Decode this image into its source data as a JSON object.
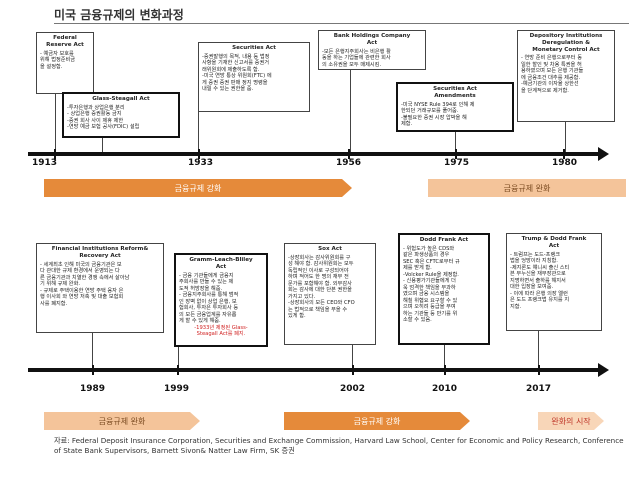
{
  "title": "미국 금융규제의 변화과정",
  "top": {
    "boxes": [
      {
        "id": "federal",
        "title": "Federal\nReserve Act",
        "body": "- 예금자 보호를\n위해 법정준비금\n을 설정함."
      },
      {
        "id": "glass",
        "title": "Glass-Steagall Act",
        "body": "-투자은행과 상업은행 분리\n- 상업은행 증권활동 금지\n-증권 회사 사이 제휴 제한\n-연방 예금 보험 공사(FDIC) 설립"
      },
      {
        "id": "securities",
        "title": "Securities Act",
        "body": "-증권발행의 목적, 내용 등 법정\n사항을 기재한 신고서를 증권거\n래위원회에 제출하도록 함.\n-미국 연방 통상 위원회(FTC) 에\n게 증권 증권 판매 정지 명령을\n내릴 수 있는 권한을 줌."
      },
      {
        "id": "bhca",
        "title": "Bank Holdings Company\nAct",
        "body": "-모든 은행지주회사는 비은행 활\n동을 하는 기업들에 관련한 회사\n의 소유권을 모두 매제시킴."
      },
      {
        "id": "secamend",
        "title": "Securities Act\nAmendments",
        "body": "-미국 NYSE Rule 394로 인해 제\n한되던 거래규모를 풀어줌.\n-불필요한 증권 시장 압박을 해\n제함."
      },
      {
        "id": "didmca",
        "title": "Depository Institutions\nDeregulation &\nMonetary Control Act",
        "body": "- 연방 준비 은행으로부터 동\n일한 할인 및 차용 특권을 허\n용하였으며 모든 은행 기관들\n에 금융조건 대추를 제공함.\n-예금기관의 이자율 상한선\n을 단계적으로 제거함."
      }
    ],
    "years": [
      "1913",
      "1933",
      "1956",
      "1975",
      "1980"
    ],
    "bands": [
      {
        "label": "금융규제 강화"
      },
      {
        "label": "금융규제 완화"
      }
    ]
  },
  "bottom": {
    "boxes": [
      {
        "id": "firrea",
        "title": "Financial Institutions Reform&\nRecovery Act",
        "body": "- 세계최초 인해 미국의 금융기관은 보\n다 관대한 규제 환경에서 운영되는 다\n른 금융기관과 치열한 경쟁 속에서 살아남\n기 위해 규제 완화.\n- 규제로 주택이용한 연방 주택 융자 은\n행 이사회 와 연방 저축 및 대출 보험회\n사를 폐지함."
      },
      {
        "id": "glba",
        "title": "Gramm-Leach-Bliley\nAct",
        "body": "- 금융 기관들에게 금융지\n주회사를 만들 수 있는 제\n도적 허방장을 해줌.\n- 금융지주회사를 통해 범적\n인 장벽 없이 상업 은행, 보\n험회사, 투자은 투자회사 등\n의 모든 금융업계를 자유롭\n게 할 수 있게 해줌.",
        "note": "-1933년 제정된 Glass-\nSteagall Act를 폐지."
      },
      {
        "id": "sox",
        "title": "Sox Act",
        "body": "-상장회사는 감사위원회를 구\n성 해야 함. 감사위원회는 모두\n독립적인 이사로 구성되어야\n하며 적어도 한 명의 재무 전\n문가를 포함해야 함. 외부감사\n회는 감사에 대한 단본 권한을\n가지고 있다.\n-상장회사의 모든 CEO와 CFO\n는 법적으로 책임을 부을 수\n있게 함."
      },
      {
        "id": "dodd",
        "title": "Dodd Frank Act",
        "body": "- 위험도가 높은 CDS와\n같은 파생상품의 경우\nSEC 혹은 CFTC로부터 규\n제를 받게 함.\n-Volcker Rule을 제정함.\n- 신용평가기관들에게 더\n욱 엄격한 책임을 부과하\n였으며 금융 시스템을\n해칠 위협요 요구할 수 있\n으며 오히려 등급을 부여\n하는 기관들 등 만기를 위\n소할 수 있음."
      },
      {
        "id": "trump",
        "title": "Trump & Dodd Frank\nAct",
        "body": "- 트럼프는 도드-프랭크\n법을 엉망이라 지칭함.\n-제지론도 얘니씨 출신 스티\n븐 무누신을 재무장관으로\n지명하면서 출하를 해지서\n대한 입장을 보여줌.\n- 이에 따라 은행 의장 엘런\n은 도드 프랭크법 유지를 지\n지함."
      }
    ],
    "years": [
      "1989",
      "1999",
      "2002",
      "2010",
      "2017"
    ],
    "bands": [
      {
        "label": "금융규제 완화"
      },
      {
        "label": "금융규제 강화"
      },
      {
        "label": "완화의 시작"
      }
    ]
  },
  "source": "자료: Federal Deposit Insurance Corporation, Securities and Exchange Commission, Harvard Law School, Center for Economic and Policy Research, Conference of State Bank Supervisors, Barnett Sivon& Natter Law Firm, SK 증권"
}
